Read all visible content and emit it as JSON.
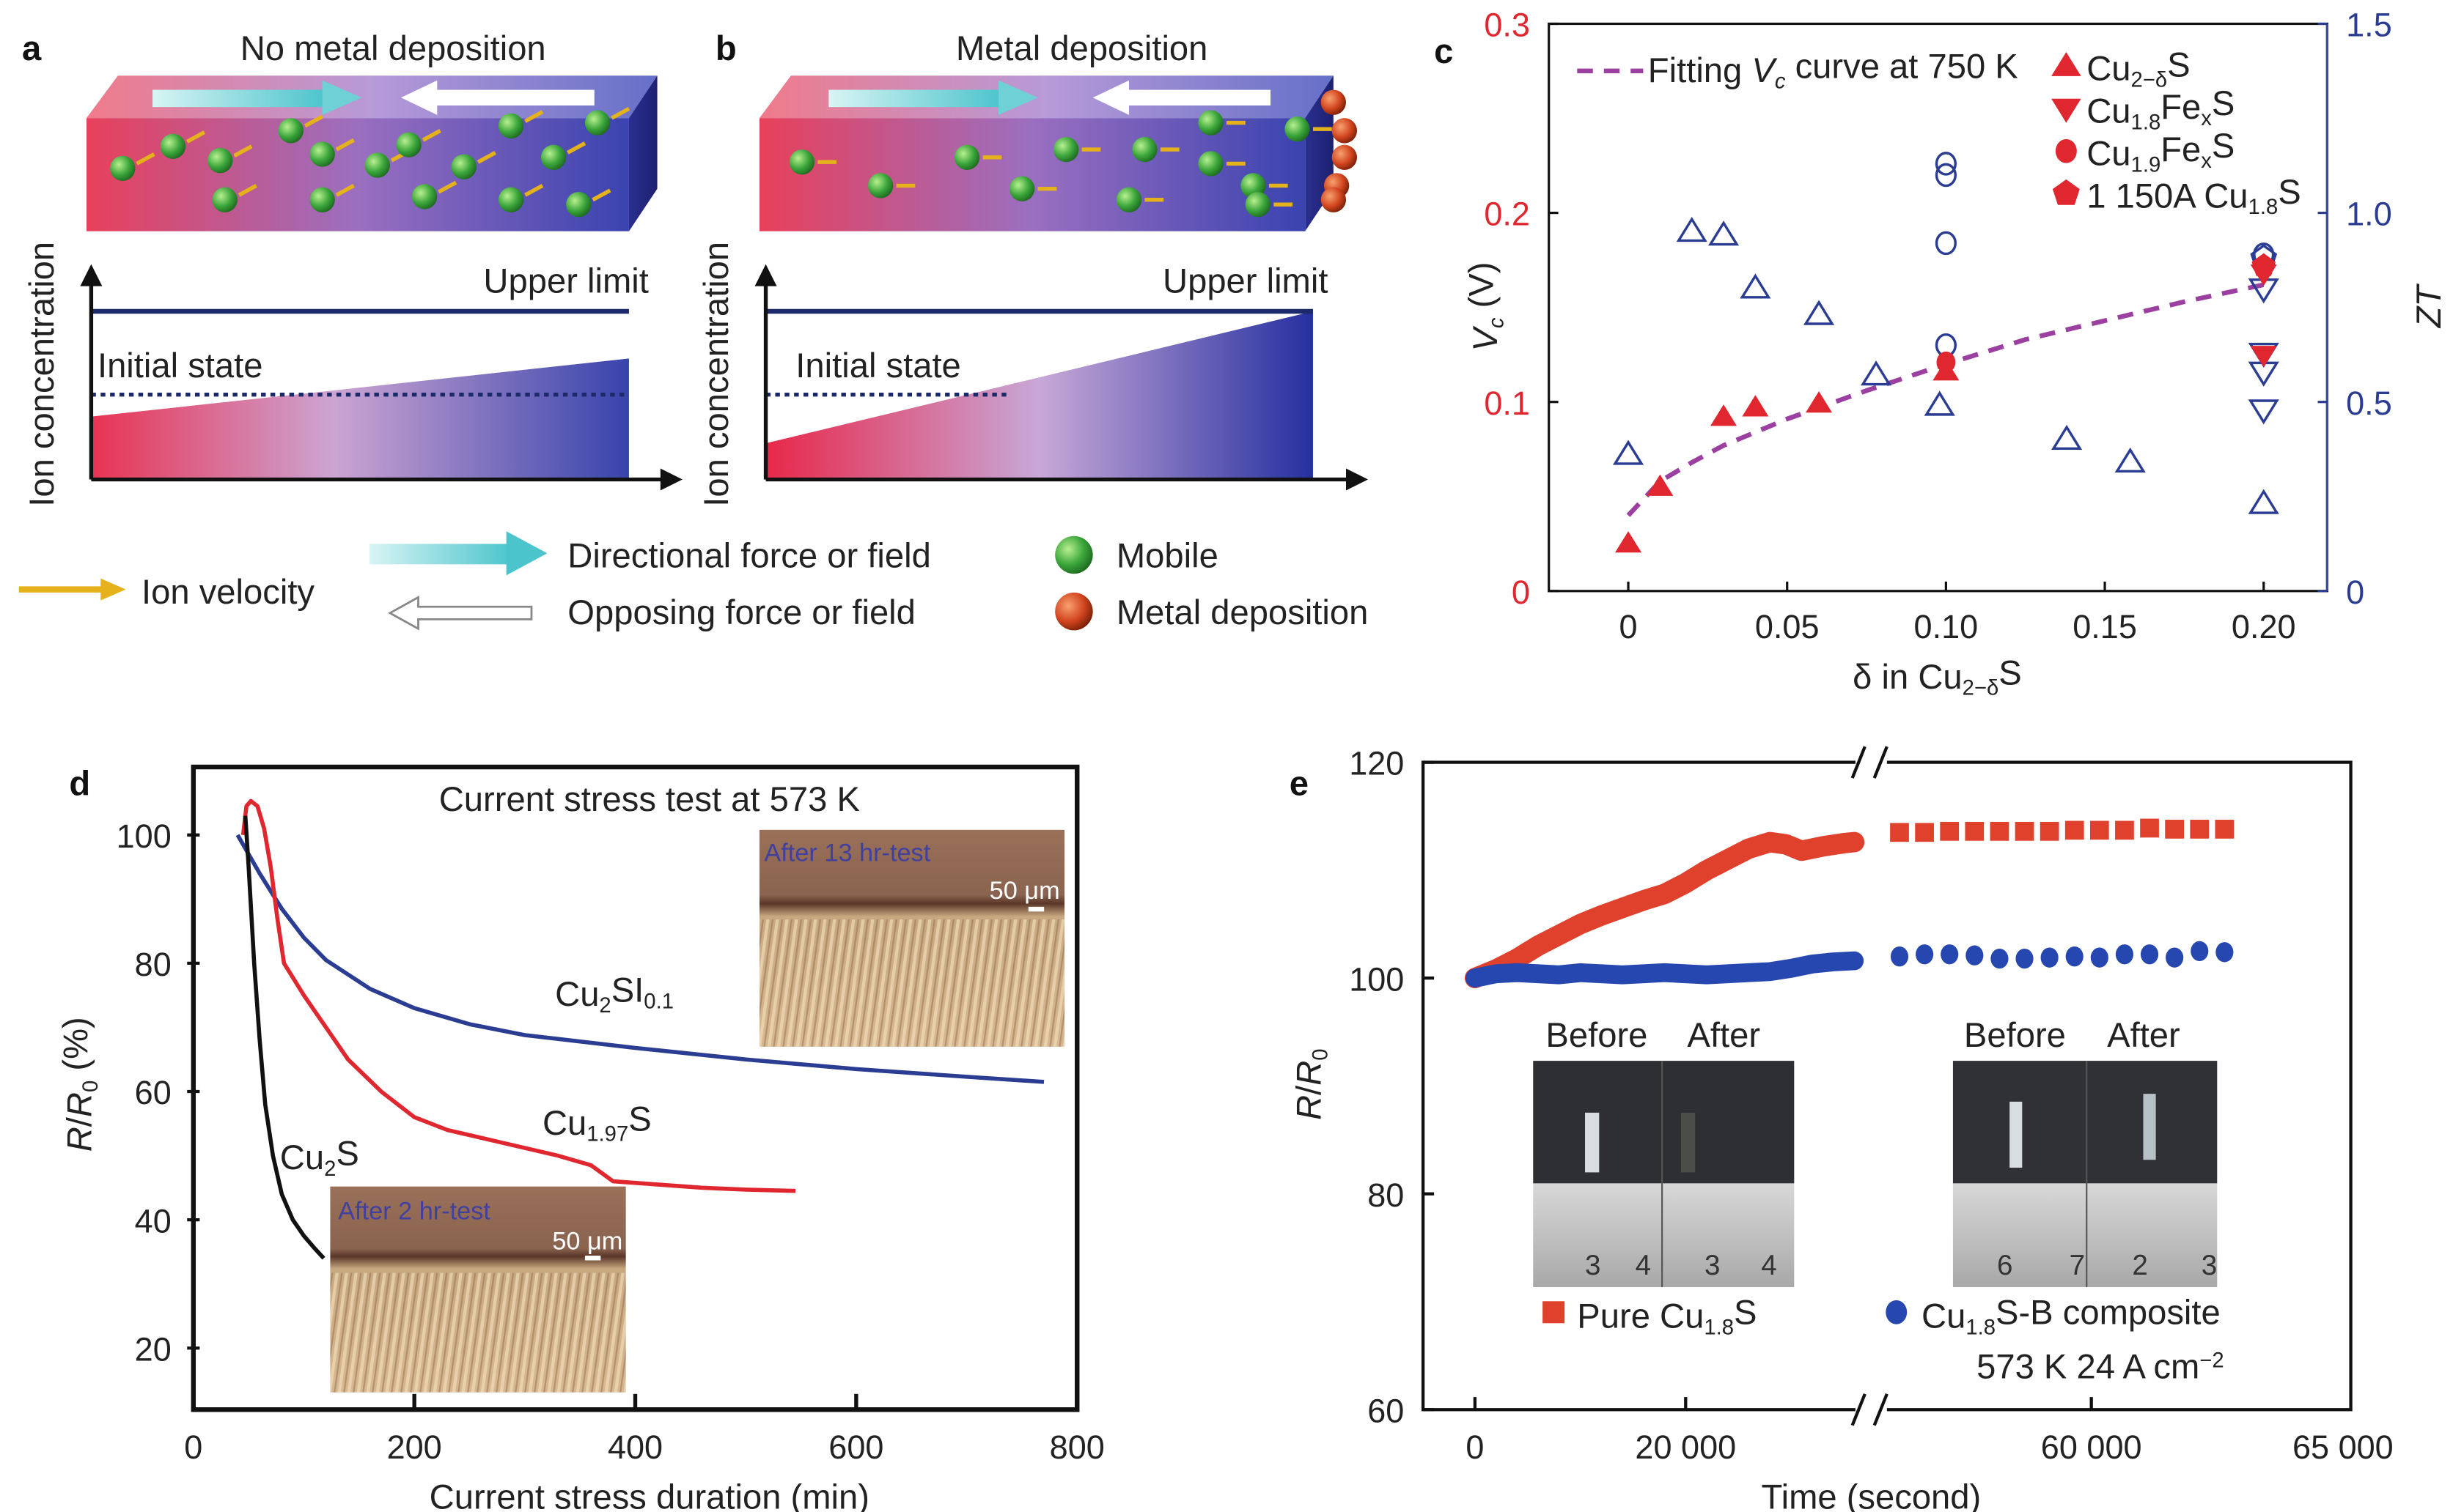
{
  "panel_labels": {
    "a": "a",
    "b": "b",
    "c": "c",
    "d": "d",
    "e": "e"
  },
  "panel_a": {
    "title": "No metal deposition",
    "y_axis_label": "Ion concentration",
    "upper_limit": "Upper limit",
    "initial_state": "Initial state"
  },
  "panel_b": {
    "title": "Metal deposition",
    "y_axis_label": "Ion concentration",
    "upper_limit": "Upper limit",
    "initial_state": "Initial state"
  },
  "schematic_legend": {
    "ion_velocity": "Ion velocity",
    "directional": "Directional force or field",
    "opposing": "Opposing force or field",
    "mobile": "Mobile",
    "metal_deposition": "Metal deposition"
  },
  "colors": {
    "red": "#e0262f",
    "blue": "#2b3c93",
    "purple": "#9b3fa0",
    "black": "#111111",
    "mobile_green": "#3aa53a",
    "deposit_orange": "#d2451e",
    "velocity_yellow": "#e6b21c",
    "field_cyan": "#6fd0d6"
  },
  "chart_data": [
    {
      "panel": "c",
      "type": "scatter",
      "xlabel": [
        {
          "t": "δ in Cu"
        },
        {
          "sub": "2−δ"
        },
        {
          "t": "S"
        }
      ],
      "ylabel_left": [
        {
          "i": "V"
        },
        {
          "isub": "c"
        },
        {
          "t": " (V)"
        }
      ],
      "ylabel_right": "ZT",
      "xlim": [
        -0.025,
        0.22
      ],
      "ylim_left": [
        0,
        0.3
      ],
      "ylim_right": [
        0,
        1.5
      ],
      "xticks": [
        "0",
        "0.05",
        "0.10",
        "0.15",
        "0.20"
      ],
      "xtick_values": [
        0,
        0.05,
        0.1,
        0.15,
        0.2
      ],
      "yticks_left": [
        "0",
        "0.1",
        "0.2",
        "0.3"
      ],
      "ytick_left_values": [
        0,
        0.1,
        0.2,
        0.3
      ],
      "yticks_right": [
        "0",
        "0.5",
        "1.0",
        "1.5"
      ],
      "ytick_right_values": [
        0,
        0.5,
        1.0,
        1.5
      ],
      "legend": {
        "fit": [
          {
            "t": "Fitting "
          },
          {
            "i": "V"
          },
          {
            "isub": "c"
          },
          {
            "t": " curve at 750 K"
          }
        ],
        "entries": [
          {
            "marker": "triangle-up",
            "label": [
              {
                "t": "Cu"
              },
              {
                "sub": "2−δ"
              },
              {
                "t": "S"
              }
            ]
          },
          {
            "marker": "triangle-down",
            "label": [
              {
                "t": "Cu"
              },
              {
                "sub": "1.8"
              },
              {
                "t": "Fe"
              },
              {
                "sub": "x"
              },
              {
                "t": "S"
              }
            ]
          },
          {
            "marker": "circle",
            "label": [
              {
                "t": "Cu"
              },
              {
                "sub": "1.9"
              },
              {
                "t": "Fe"
              },
              {
                "sub": "x"
              },
              {
                "t": "S"
              }
            ]
          },
          {
            "marker": "pentagon",
            "label": [
              {
                "t": "1 150A Cu"
              },
              {
                "sub": "1.8"
              },
              {
                "t": "S"
              }
            ]
          }
        ],
        "placement": "top-left"
      },
      "fit_curve": {
        "x": [
          0,
          0.01,
          0.02,
          0.03,
          0.05,
          0.075,
          0.1,
          0.125,
          0.15,
          0.175,
          0.2
        ],
        "y": [
          0.04,
          0.058,
          0.068,
          0.077,
          0.091,
          0.106,
          0.12,
          0.133,
          0.143,
          0.153,
          0.162
        ]
      },
      "vc_series": [
        {
          "marker": "triangle-up",
          "x": [
            0,
            0.01,
            0.03,
            0.04,
            0.06,
            0.1
          ],
          "y": [
            0.025,
            0.055,
            0.092,
            0.097,
            0.099,
            0.116
          ]
        },
        {
          "marker": "triangle-down",
          "x": [
            0.2,
            0.2
          ],
          "y": [
            0.168,
            0.125
          ]
        },
        {
          "marker": "circle",
          "x": [
            0.1
          ],
          "y": [
            0.121
          ]
        },
        {
          "marker": "pentagon",
          "x": [
            0.2
          ],
          "y": [
            0.172
          ]
        }
      ],
      "zt_series": [
        {
          "marker": "triangle-up",
          "x": [
            0,
            0.02,
            0.03,
            0.04,
            0.06,
            0.078,
            0.098,
            0.138,
            0.158,
            0.2
          ],
          "y": [
            0.36,
            0.95,
            0.94,
            0.8,
            0.73,
            0.57,
            0.49,
            0.4,
            0.34,
            0.23
          ]
        },
        {
          "marker": "triangle-down",
          "x": [
            0.2,
            0.2,
            0.2,
            0.2
          ],
          "y": [
            0.8,
            0.63,
            0.58,
            0.48
          ]
        },
        {
          "marker": "circle",
          "x": [
            0.1,
            0.1,
            0.1,
            0.1,
            0.2
          ],
          "y": [
            1.13,
            1.1,
            0.92,
            0.65,
            0.89
          ]
        },
        {
          "marker": "pentagon",
          "x": [
            0.2
          ],
          "y": [
            0.88
          ]
        }
      ]
    },
    {
      "panel": "d",
      "type": "line",
      "title": "Current stress test at 573 K",
      "xlabel": "Current stress duration (min)",
      "ylabel": [
        {
          "i": "R"
        },
        {
          "t": "/"
        },
        {
          "i": "R"
        },
        {
          "sub": "0"
        },
        {
          "t": " (%)"
        }
      ],
      "xlim": [
        0,
        800
      ],
      "ylim": [
        10.4,
        110.6
      ],
      "xticks": [
        "0",
        "200",
        "400",
        "600",
        "800"
      ],
      "xtick_values": [
        0,
        200,
        400,
        600,
        800
      ],
      "yticks": [
        "20",
        "40",
        "60",
        "80",
        "100"
      ],
      "ytick_values": [
        20,
        40,
        60,
        80,
        100
      ],
      "series": [
        {
          "name": [
            {
              "t": "Cu"
            },
            {
              "sub": "2"
            },
            {
              "t": "SI"
            },
            {
              "sub": "0.1"
            }
          ],
          "color": "#2b3c93",
          "x": [
            40,
            60,
            80,
            100,
            120,
            160,
            200,
            250,
            300,
            400,
            500,
            600,
            700,
            770
          ],
          "y": [
            100,
            94,
            88.5,
            84,
            80.5,
            76,
            73,
            70.5,
            68.8,
            66.8,
            65,
            63.5,
            62.3,
            61.5
          ]
        },
        {
          "name": [
            {
              "t": "Cu"
            },
            {
              "sub": "1.97"
            },
            {
              "t": "S"
            }
          ],
          "color": "#e0262f",
          "x": [
            45,
            48,
            52,
            58,
            64,
            70,
            76,
            82,
            100,
            120,
            140,
            170,
            200,
            230,
            280,
            330,
            360,
            380,
            420,
            460,
            500,
            545
          ],
          "y": [
            100,
            104.5,
            105.3,
            104.5,
            101,
            95,
            87,
            80,
            75,
            70,
            65,
            60,
            56,
            54,
            52,
            50,
            48.5,
            46,
            45.5,
            45,
            44.7,
            44.5
          ]
        },
        {
          "name": [
            {
              "t": "Cu"
            },
            {
              "sub": "2"
            },
            {
              "t": "S"
            }
          ],
          "color": "#111111",
          "x": [
            47,
            50,
            55,
            60,
            65,
            72,
            80,
            90,
            100,
            110,
            118
          ],
          "y": [
            103,
            95,
            80,
            68,
            58,
            50,
            44,
            40,
            37.5,
            35.5,
            34
          ]
        }
      ],
      "insets": [
        {
          "caption": "After 13 hr-test",
          "scale": "50 μm"
        },
        {
          "caption": "After 2 hr-test",
          "scale": "50 μm"
        }
      ]
    },
    {
      "panel": "e",
      "type": "scatter",
      "xlabel": "Time (second)",
      "ylabel": [
        {
          "i": "R"
        },
        {
          "t": "/"
        },
        {
          "i": "R"
        },
        {
          "sub": "0"
        }
      ],
      "ylim": [
        60,
        120
      ],
      "broken_x_axis": true,
      "xticks": [
        "0",
        "20 000",
        "60 000",
        "65 000"
      ],
      "xtick_values": [
        0,
        20000,
        60000,
        65000
      ],
      "yticks": [
        "60",
        "80",
        "100",
        "120"
      ],
      "ytick_values": [
        60,
        80,
        100,
        120
      ],
      "series": [
        {
          "name": [
            {
              "t": "Pure Cu"
            },
            {
              "sub": "1.8"
            },
            {
              "t": "S"
            }
          ],
          "marker": "square",
          "color": "#e0412c",
          "dense_x": [
            0,
            2000,
            4000,
            6000,
            8000,
            10000,
            12000,
            14000,
            16000,
            18000,
            20000,
            22000,
            24000,
            26000,
            28000,
            29500,
            31000,
            33000,
            35000,
            36000
          ],
          "dense_y": [
            100,
            100.8,
            101.8,
            103,
            104,
            105,
            105.8,
            106.5,
            107.2,
            107.8,
            108.8,
            110,
            111,
            112,
            112.6,
            112.4,
            111.8,
            112.2,
            112.5,
            112.6
          ],
          "sparse_x": [
            56000,
            56500,
            57000,
            57500,
            58000,
            58500,
            59000,
            59500,
            60000,
            60500,
            61000,
            61500,
            62000,
            62500
          ],
          "sparse_y": [
            113.5,
            113.5,
            113.6,
            113.6,
            113.6,
            113.6,
            113.6,
            113.7,
            113.7,
            113.7,
            113.9,
            113.8,
            113.8,
            113.8
          ]
        },
        {
          "name": [
            {
              "t": "Cu"
            },
            {
              "sub": "1.8"
            },
            {
              "t": "S-B composite"
            }
          ],
          "marker": "circle",
          "color": "#2747b0",
          "dense_x": [
            0,
            2000,
            4000,
            6000,
            8000,
            10000,
            12000,
            14000,
            16000,
            18000,
            20000,
            22000,
            24000,
            26000,
            28000,
            30000,
            32000,
            34000,
            36000
          ],
          "dense_y": [
            100,
            100.4,
            100.5,
            100.4,
            100.3,
            100.5,
            100.4,
            100.3,
            100.4,
            100.5,
            100.4,
            100.3,
            100.4,
            100.5,
            100.6,
            100.9,
            101.3,
            101.5,
            101.6
          ],
          "sparse_x": [
            56000,
            56500,
            57000,
            57500,
            58000,
            58500,
            59000,
            59500,
            60000,
            60500,
            61000,
            61500,
            62000,
            62500
          ],
          "sparse_y": [
            102,
            102.2,
            102.2,
            102.1,
            101.8,
            101.8,
            101.9,
            102,
            101.9,
            102.2,
            102.2,
            101.9,
            102.5,
            102.4
          ]
        }
      ],
      "conditions": [
        {
          "t": "573 K   24 A cm"
        },
        {
          "sup": "−2"
        }
      ],
      "photo_labels": {
        "before": "Before",
        "after": "After"
      },
      "ruler_numbers": {
        "left": [
          "3",
          "4",
          "3",
          "4"
        ],
        "right": [
          "6",
          "7",
          "2",
          "3"
        ]
      }
    }
  ]
}
